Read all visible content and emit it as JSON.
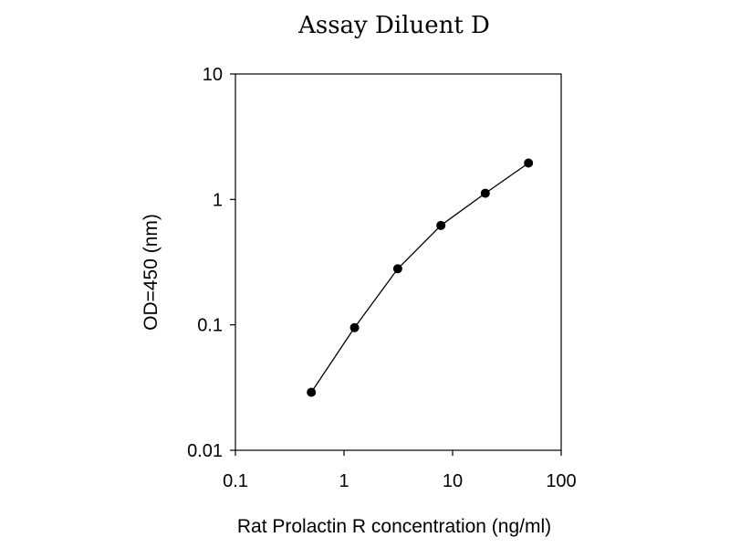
{
  "chart_data": {
    "type": "scatter",
    "title": "Assay Diluent D",
    "xlabel": "Rat Prolactin R concentration (ng/ml)",
    "ylabel": "OD=450 (nm)",
    "x_scale": "log",
    "y_scale": "log",
    "xlim": [
      0.1,
      100
    ],
    "ylim": [
      0.01,
      10
    ],
    "x_ticks": [
      "0.1",
      "1",
      "10",
      "100"
    ],
    "y_ticks": [
      "0.01",
      "0.1",
      "1",
      "10"
    ],
    "grid": false,
    "legend": "none",
    "series": [
      {
        "x": [
          0.5,
          1.25,
          3.125,
          7.8,
          20,
          50
        ],
        "y": [
          0.029,
          0.095,
          0.28,
          0.62,
          1.12,
          1.95
        ]
      }
    ]
  }
}
